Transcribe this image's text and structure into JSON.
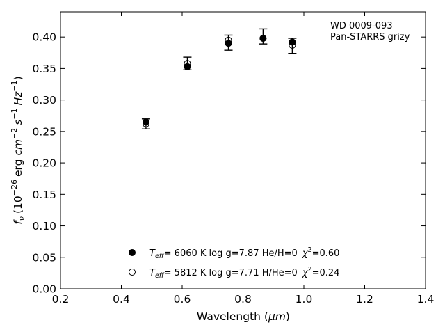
{
  "chart_data": {
    "type": "scatter",
    "xlabel_main": "Wavelength (",
    "xlabel_unit": "μm",
    "xlabel_close": ")",
    "ylabel": {
      "f": "f",
      "nu": "ν",
      "open": "(10",
      "exp1": "−26",
      "erg": "erg",
      "cm": "cm",
      "exp2": "−2",
      "s": "s",
      "exp3": "−1",
      "hz": "Hz",
      "exp4": "−1",
      "close": ")"
    },
    "xlim": [
      0.2,
      1.4
    ],
    "ylim": [
      0.0,
      0.44
    ],
    "xticks": [
      "0.2",
      "0.4",
      "0.6",
      "0.8",
      "1.0",
      "1.2",
      "1.4"
    ],
    "yticks": [
      "0.00",
      "0.05",
      "0.10",
      "0.15",
      "0.20",
      "0.25",
      "0.30",
      "0.35",
      "0.40"
    ],
    "annotation": {
      "line1": "WD 0009-093",
      "line2": "Pan-STARRS grizy"
    },
    "observed": {
      "x": [
        0.481,
        0.617,
        0.752,
        0.866,
        0.962
      ],
      "y": [
        0.262,
        0.358,
        0.391,
        0.401,
        0.386
      ],
      "yerr": [
        0.008,
        0.01,
        0.012,
        0.012,
        0.012
      ]
    },
    "series": [
      {
        "marker": "filled",
        "x": [
          0.481,
          0.617,
          0.752,
          0.866,
          0.962
        ],
        "y": [
          0.265,
          0.353,
          0.39,
          0.398,
          0.392
        ],
        "legend": {
          "t": "T",
          "sub": "eff",
          "mid": "=  6060 K  log g=7.87  He/H=0",
          "chi": "χ",
          "sup": "2",
          "end": "=0.60"
        }
      },
      {
        "marker": "open",
        "x": [
          0.481,
          0.617,
          0.752,
          0.866,
          0.962
        ],
        "y": [
          0.262,
          0.358,
          0.395,
          0.398,
          0.387
        ],
        "legend": {
          "t": "T",
          "sub": "eff",
          "mid": "=  5812 K  log g=7.71  H/He=0",
          "chi": "χ",
          "sup": "2",
          "end": "=0.24"
        }
      }
    ]
  }
}
